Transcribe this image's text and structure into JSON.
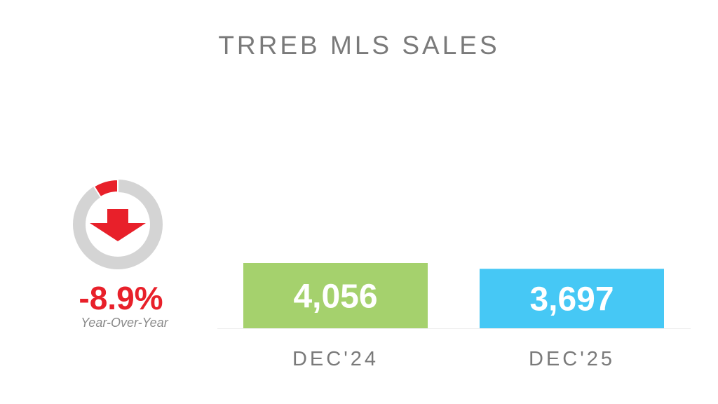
{
  "chart_data": {
    "type": "bar",
    "title": "TRREB MLS SALES",
    "categories": [
      "DEC'24",
      "DEC'25"
    ],
    "values": [
      4056,
      3697
    ],
    "value_labels": [
      "4,056",
      "3,697"
    ],
    "colors": [
      "#a5d16d",
      "#46c8f5"
    ],
    "xlabel": "",
    "ylabel": "",
    "grid": false,
    "change": {
      "value": -8.9,
      "label": "-8.9%",
      "caption": "Year-Over-Year",
      "color": "#e8202a",
      "ring_color": "#d4d4d4",
      "direction": "down"
    }
  }
}
